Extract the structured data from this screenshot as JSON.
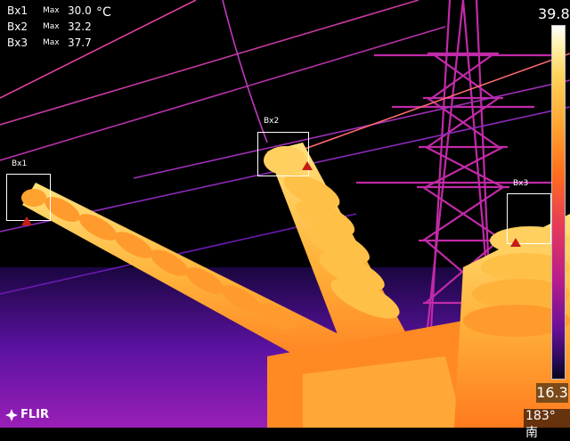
{
  "measurements": [
    {
      "name": "Bx1",
      "label": "Max",
      "value": "30.0"
    },
    {
      "name": "Bx2",
      "label": "Max",
      "value": "32.2"
    },
    {
      "name": "Bx3",
      "label": "Max",
      "value": "37.7"
    }
  ],
  "unit": "°C",
  "boxes": {
    "bx1": {
      "label": "Bx1"
    },
    "bx2": {
      "label": "Bx2"
    },
    "bx3": {
      "label": "Bx3"
    }
  },
  "scale": {
    "max": "39.8",
    "min": "16.3"
  },
  "brand": {
    "logo_text": "FLIR",
    "icon": "flir-logo-icon"
  },
  "compass": {
    "text": "183° 南"
  },
  "colors": {
    "hot": "#ffd85a",
    "warm": "#ff7a1e",
    "mid": "#d4338f",
    "cold": "#3a0f7a",
    "marker": "#c41e14"
  }
}
